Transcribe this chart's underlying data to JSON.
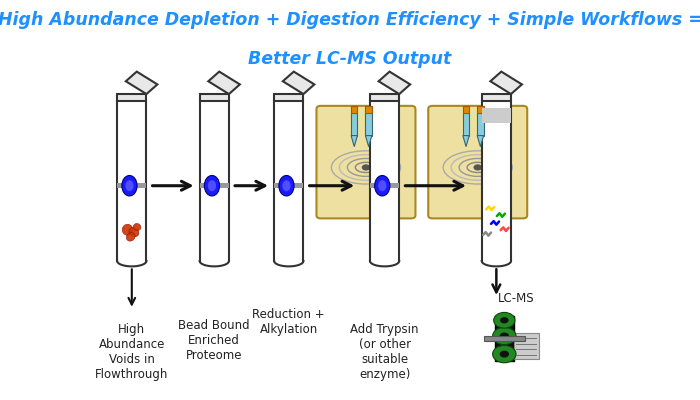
{
  "title_line1": "High Abundance Depletion + Digestion Efficiency + Simple Workflows =",
  "title_line2": "Better LC-MS Output",
  "title_color": "#1E90FF",
  "title_fontsize": 12.5,
  "bg_color": "#FFFFFF",
  "labels": [
    "High\nAbundance\nVoids in\nFlowthrough",
    "Bead Bound\nEnriched\nProteome",
    "Reduction +\nAlkylation",
    "Add Trypsin\n(or other\nsuitable\nenzyme)",
    "LC-MS"
  ],
  "label_fontsize": 8.5,
  "label_color": "#222222",
  "arrow_color": "#111111",
  "tube_color": "#FFFFFF",
  "tube_edge_color": "#333333",
  "bead_color": "#1A1AFF",
  "plate_bg": "#EDE0A0",
  "gray_band_color": "#BBBBBB",
  "orange_blob_color": "#CC4400",
  "peptide_colors": [
    "#FFD700",
    "#00AA00",
    "#0000FF",
    "#FF4444",
    "#888888"
  ]
}
